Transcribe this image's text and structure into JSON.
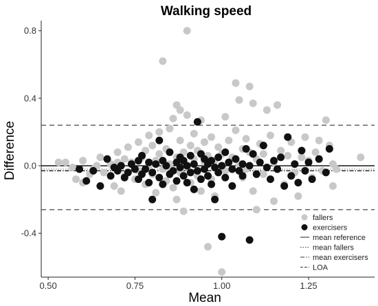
{
  "chart_data": {
    "type": "scatter",
    "title": "Walking speed",
    "xlabel": "Mean",
    "ylabel": "Difference",
    "xlim": [
      0.48,
      1.44
    ],
    "ylim": [
      -0.66,
      0.86
    ],
    "xticks": [
      {
        "value": 0.5,
        "label": "0.50"
      },
      {
        "value": 0.75,
        "label": "0.75"
      },
      {
        "value": 1.0,
        "label": "1.00"
      },
      {
        "value": 1.25,
        "label": "1.25"
      }
    ],
    "yticks": [
      {
        "value": 0.8,
        "label": "0.8"
      },
      {
        "value": 0.4,
        "label": "0.4"
      },
      {
        "value": 0.0,
        "label": "0.0"
      },
      {
        "value": -0.4,
        "label": "-0.4"
      }
    ],
    "grid": false,
    "legend_position": "bottom-right",
    "reference_lines": [
      {
        "name": "mean reference",
        "y": 0.0,
        "style": "solid",
        "color": "#000000"
      },
      {
        "name": "mean fallers",
        "y": -0.02,
        "style": "dotted",
        "color": "#888888"
      },
      {
        "name": "mean exercisers",
        "y": -0.03,
        "style": "dashdot",
        "color": "#000000"
      },
      {
        "name": "LOA",
        "y": 0.24,
        "style": "dashed",
        "color": "#444444"
      },
      {
        "name": "LOA",
        "y": -0.26,
        "style": "dashed",
        "color": "#444444"
      }
    ],
    "legend": [
      {
        "label": "fallers",
        "kind": "point",
        "color": "#c8c8c8"
      },
      {
        "label": "exercisers",
        "kind": "point",
        "color": "#111111"
      },
      {
        "label": "mean reference",
        "kind": "line",
        "style": "solid"
      },
      {
        "label": "mean fallers",
        "kind": "line",
        "style": "dotted"
      },
      {
        "label": "mean exercisers",
        "kind": "line",
        "style": "dashdot"
      },
      {
        "label": "LOA",
        "kind": "line",
        "style": "dashed"
      }
    ],
    "series": [
      {
        "name": "fallers",
        "color": "#c8c8c8",
        "points": [
          [
            0.53,
            0.02
          ],
          [
            0.55,
            0.02
          ],
          [
            0.57,
            -0.01
          ],
          [
            0.58,
            -0.08
          ],
          [
            0.6,
            -0.1
          ],
          [
            0.6,
            0.03
          ],
          [
            0.62,
            -0.05
          ],
          [
            0.63,
            -0.02
          ],
          [
            0.64,
            0.0
          ],
          [
            0.65,
            0.05
          ],
          [
            0.66,
            -0.04
          ],
          [
            0.68,
            0.01
          ],
          [
            0.69,
            -0.12
          ],
          [
            0.7,
            0.02
          ],
          [
            0.7,
            0.08
          ],
          [
            0.71,
            -0.15
          ],
          [
            0.72,
            0.04
          ],
          [
            0.72,
            -0.06
          ],
          [
            0.73,
            0.11
          ],
          [
            0.74,
            0.02
          ],
          [
            0.75,
            -0.08
          ],
          [
            0.76,
            0.14
          ],
          [
            0.76,
            -0.03
          ],
          [
            0.77,
            0.05
          ],
          [
            0.78,
            0.09
          ],
          [
            0.78,
            -0.11
          ],
          [
            0.79,
            0.0
          ],
          [
            0.79,
            0.18
          ],
          [
            0.8,
            -0.05
          ],
          [
            0.8,
            0.12
          ],
          [
            0.81,
            0.03
          ],
          [
            0.81,
            -0.16
          ],
          [
            0.82,
            0.07
          ],
          [
            0.82,
            0.2
          ],
          [
            0.83,
            -0.02
          ],
          [
            0.83,
            0.62
          ],
          [
            0.84,
            0.1
          ],
          [
            0.84,
            -0.09
          ],
          [
            0.85,
            0.22
          ],
          [
            0.85,
            0.01
          ],
          [
            0.86,
            -0.13
          ],
          [
            0.86,
            0.28
          ],
          [
            0.87,
            0.05
          ],
          [
            0.87,
            -0.2
          ],
          [
            0.87,
            0.36
          ],
          [
            0.88,
            0.15
          ],
          [
            0.88,
            -0.04
          ],
          [
            0.88,
            0.33
          ],
          [
            0.89,
            0.08
          ],
          [
            0.89,
            -0.27
          ],
          [
            0.9,
            0.8
          ],
          [
            0.9,
            0.3
          ],
          [
            0.9,
            -0.01
          ],
          [
            0.91,
            0.12
          ],
          [
            0.91,
            -0.1
          ],
          [
            0.92,
            0.04
          ],
          [
            0.92,
            0.19
          ],
          [
            0.93,
            -0.06
          ],
          [
            0.93,
            0.09
          ],
          [
            0.94,
            0.27
          ],
          [
            0.94,
            -0.15
          ],
          [
            0.95,
            0.02
          ],
          [
            0.95,
            0.14
          ],
          [
            0.96,
            -0.48
          ],
          [
            0.96,
            0.06
          ],
          [
            0.97,
            0.17
          ],
          [
            0.97,
            -0.08
          ],
          [
            0.98,
            0.03
          ],
          [
            0.98,
            -0.18
          ],
          [
            0.99,
            0.11
          ],
          [
            1.0,
            -0.63
          ],
          [
            1.0,
            0.07
          ],
          [
            1.01,
            0.29
          ],
          [
            1.01,
            -0.03
          ],
          [
            1.02,
            0.15
          ],
          [
            1.03,
            0.05
          ],
          [
            1.03,
            -0.12
          ],
          [
            1.04,
            0.49
          ],
          [
            1.04,
            0.21
          ],
          [
            1.05,
            0.01
          ],
          [
            1.05,
            0.39
          ],
          [
            1.06,
            -0.07
          ],
          [
            1.06,
            0.1
          ],
          [
            1.07,
            0.16
          ],
          [
            1.07,
            -0.02
          ],
          [
            1.08,
            0.47
          ],
          [
            1.08,
            0.08
          ],
          [
            1.09,
            -0.15
          ],
          [
            1.09,
            0.37
          ],
          [
            1.1,
            0.04
          ],
          [
            1.1,
            -0.26
          ],
          [
            1.11,
            0.13
          ],
          [
            1.12,
            0.07
          ],
          [
            1.12,
            -0.05
          ],
          [
            1.13,
            0.33
          ],
          [
            1.14,
            0.18
          ],
          [
            1.15,
            0.02
          ],
          [
            1.15,
            -0.21
          ],
          [
            1.16,
            0.36
          ],
          [
            1.17,
            0.09
          ],
          [
            1.18,
            -0.11
          ],
          [
            1.19,
            0.06
          ],
          [
            1.2,
            0.14
          ],
          [
            1.21,
            -0.04
          ],
          [
            1.22,
            -0.18
          ],
          [
            1.23,
            0.05
          ],
          [
            1.24,
            0.17
          ],
          [
            1.25,
            0.03
          ],
          [
            1.26,
            -0.07
          ],
          [
            1.27,
            0.08
          ],
          [
            1.28,
            0.15
          ],
          [
            1.29,
            -0.03
          ],
          [
            1.3,
            0.27
          ],
          [
            1.31,
            0.12
          ],
          [
            1.32,
            0.01
          ],
          [
            1.32,
            -0.12
          ],
          [
            1.33,
            -0.02
          ],
          [
            1.4,
            0.05
          ]
        ]
      },
      {
        "name": "exercisers",
        "color": "#111111",
        "points": [
          [
            0.59,
            -0.02
          ],
          [
            0.61,
            -0.09
          ],
          [
            0.63,
            -0.03
          ],
          [
            0.65,
            -0.12
          ],
          [
            0.67,
            0.04
          ],
          [
            0.68,
            -0.06
          ],
          [
            0.69,
            -0.01
          ],
          [
            0.7,
            -0.03
          ],
          [
            0.71,
            0.0
          ],
          [
            0.72,
            -0.07
          ],
          [
            0.73,
            -0.04
          ],
          [
            0.74,
            0.01
          ],
          [
            0.75,
            -0.02
          ],
          [
            0.76,
            -0.08
          ],
          [
            0.76,
            0.03
          ],
          [
            0.77,
            -0.05
          ],
          [
            0.77,
            0.06
          ],
          [
            0.78,
            -0.02
          ],
          [
            0.79,
            -0.1
          ],
          [
            0.79,
            0.02
          ],
          [
            0.8,
            -0.2
          ],
          [
            0.8,
            -0.04
          ],
          [
            0.81,
            0.01
          ],
          [
            0.82,
            0.15
          ],
          [
            0.82,
            -0.07
          ],
          [
            0.83,
            0.03
          ],
          [
            0.83,
            -0.11
          ],
          [
            0.84,
            0.0
          ],
          [
            0.85,
            -0.05
          ],
          [
            0.85,
            0.08
          ],
          [
            0.86,
            -0.03
          ],
          [
            0.87,
            0.02
          ],
          [
            0.87,
            -0.09
          ],
          [
            0.88,
            0.05
          ],
          [
            0.88,
            -0.01
          ],
          [
            0.89,
            -0.06
          ],
          [
            0.89,
            0.03
          ],
          [
            0.9,
            0.0
          ],
          [
            0.9,
            -0.1
          ],
          [
            0.91,
            0.06
          ],
          [
            0.91,
            -0.04
          ],
          [
            0.92,
            0.01
          ],
          [
            0.92,
            -0.14
          ],
          [
            0.93,
            -0.03
          ],
          [
            0.93,
            0.26
          ],
          [
            0.94,
            0.07
          ],
          [
            0.94,
            -0.08
          ],
          [
            0.95,
            -0.02
          ],
          [
            0.95,
            0.04
          ],
          [
            0.96,
            -0.06
          ],
          [
            0.96,
            0.01
          ],
          [
            0.97,
            -0.11
          ],
          [
            0.97,
            0.03
          ],
          [
            0.98,
            -0.01
          ],
          [
            0.98,
            -0.2
          ],
          [
            0.99,
            0.05
          ],
          [
            0.99,
            -0.04
          ],
          [
            1.0,
            -0.42
          ],
          [
            1.0,
            0.0
          ],
          [
            1.01,
            0.08
          ],
          [
            1.01,
            -0.07
          ],
          [
            1.02,
            0.02
          ],
          [
            1.03,
            -0.02
          ],
          [
            1.03,
            -0.12
          ],
          [
            1.04,
            0.04
          ],
          [
            1.05,
            -0.03
          ],
          [
            1.06,
            0.01
          ],
          [
            1.06,
            -0.06
          ],
          [
            1.07,
            0.1
          ],
          [
            1.08,
            -0.44
          ],
          [
            1.08,
            0.0
          ],
          [
            1.09,
            0.07
          ],
          [
            1.1,
            -0.05
          ],
          [
            1.11,
            0.02
          ],
          [
            1.12,
            0.12
          ],
          [
            1.13,
            -0.01
          ],
          [
            1.14,
            -0.08
          ],
          [
            1.15,
            0.03
          ],
          [
            1.16,
            -0.02
          ],
          [
            1.17,
            0.05
          ],
          [
            1.18,
            -0.12
          ],
          [
            1.19,
            0.17
          ],
          [
            1.2,
            -0.06
          ],
          [
            1.21,
            0.01
          ],
          [
            1.22,
            -0.1
          ],
          [
            1.23,
            0.09
          ],
          [
            1.24,
            -0.03
          ],
          [
            1.25,
            0.02
          ],
          [
            1.26,
            -0.08
          ],
          [
            1.28,
            0.04
          ],
          [
            1.3,
            -0.04
          ],
          [
            1.31,
            0.1
          ]
        ]
      }
    ]
  }
}
